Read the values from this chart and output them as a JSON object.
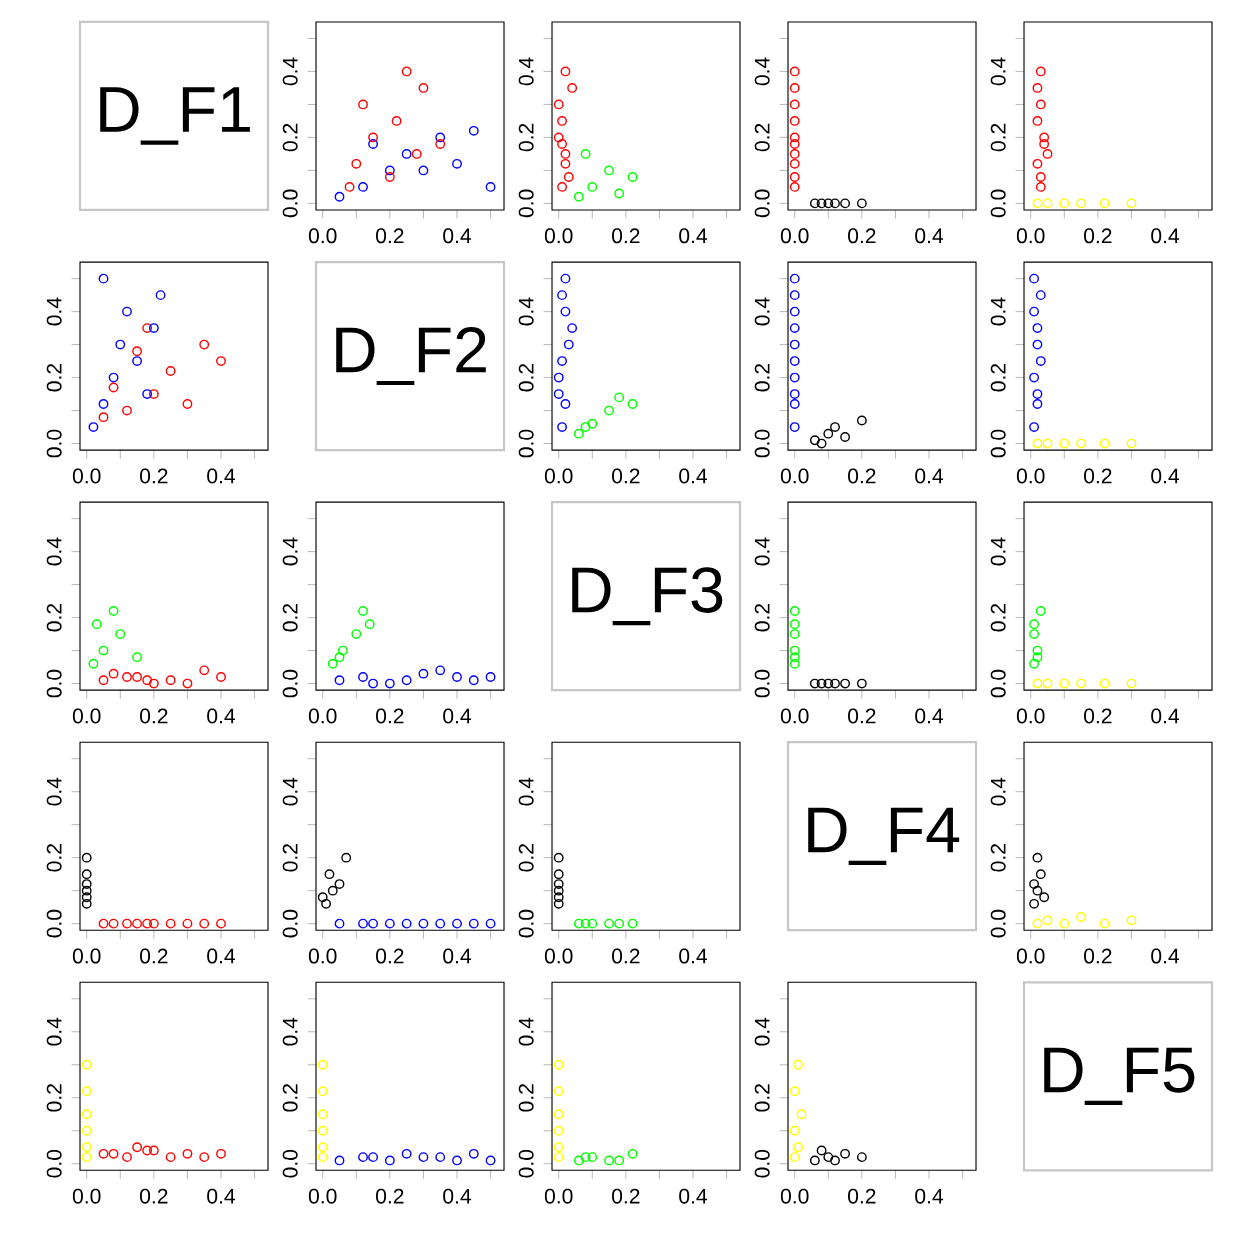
{
  "chart_data": [
    {
      "type": "other",
      "title": "D_F1"
    },
    {
      "type": "scatter",
      "marker": "circle",
      "xlim": [
        -0.02,
        0.54
      ],
      "ylim": [
        -0.02,
        0.55
      ],
      "xticks": [
        {
          "value": 0,
          "label": "0.0"
        },
        {
          "value": 0.1,
          "label": null
        },
        {
          "value": 0.2,
          "label": "0.2"
        },
        {
          "value": 0.3,
          "label": null
        },
        {
          "value": 0.4,
          "label": "0.4"
        },
        {
          "value": 0.5,
          "label": null
        }
      ],
      "yticks": [
        {
          "value": 0,
          "label": "0.0"
        },
        {
          "value": 0.1,
          "label": null
        },
        {
          "value": 0.2,
          "label": "0.2"
        },
        {
          "value": 0.3,
          "label": null
        },
        {
          "value": 0.4,
          "label": "0.4"
        },
        {
          "value": 0.5,
          "label": null
        }
      ],
      "series": [
        {
          "color": "#0000ff",
          "x": [
            0.05,
            0.12,
            0.2,
            0.3,
            0.25,
            0.4,
            0.35,
            0.45,
            0.15,
            0.5
          ],
          "values": [
            0.02,
            0.05,
            0.1,
            0.1,
            0.15,
            0.12,
            0.2,
            0.22,
            0.18,
            0.05
          ]
        },
        {
          "color": "#ff0000",
          "x": [
            0.08,
            0.1,
            0.15,
            0.2,
            0.22,
            0.28,
            0.12,
            0.3,
            0.35,
            0.25
          ],
          "values": [
            0.05,
            0.12,
            0.2,
            0.08,
            0.25,
            0.15,
            0.3,
            0.35,
            0.18,
            0.4
          ]
        }
      ]
    },
    {
      "type": "scatter",
      "marker": "circle",
      "xlim": [
        -0.02,
        0.54
      ],
      "ylim": [
        -0.02,
        0.55
      ],
      "xticks": [
        {
          "value": 0,
          "label": "0.0"
        },
        {
          "value": 0.1,
          "label": null
        },
        {
          "value": 0.2,
          "label": "0.2"
        },
        {
          "value": 0.3,
          "label": null
        },
        {
          "value": 0.4,
          "label": "0.4"
        },
        {
          "value": 0.5,
          "label": null
        }
      ],
      "yticks": [
        {
          "value": 0,
          "label": "0.0"
        },
        {
          "value": 0.1,
          "label": null
        },
        {
          "value": 0.2,
          "label": "0.2"
        },
        {
          "value": 0.3,
          "label": null
        },
        {
          "value": 0.4,
          "label": "0.4"
        },
        {
          "value": 0.5,
          "label": null
        }
      ],
      "series": [
        {
          "color": "#ff0000",
          "x": [
            0.01,
            0.02,
            0.0,
            0.03,
            0.01,
            0.02,
            0.0,
            0.04,
            0.01,
            0.02
          ],
          "values": [
            0.05,
            0.12,
            0.2,
            0.08,
            0.25,
            0.15,
            0.3,
            0.35,
            0.18,
            0.4
          ]
        },
        {
          "color": "#00ff00",
          "x": [
            0.06,
            0.1,
            0.15,
            0.22,
            0.08,
            0.18
          ],
          "values": [
            0.02,
            0.05,
            0.1,
            0.08,
            0.15,
            0.03
          ]
        }
      ]
    },
    {
      "type": "scatter",
      "marker": "circle",
      "xlim": [
        -0.02,
        0.54
      ],
      "ylim": [
        -0.02,
        0.55
      ],
      "xticks": [
        {
          "value": 0,
          "label": "0.0"
        },
        {
          "value": 0.1,
          "label": null
        },
        {
          "value": 0.2,
          "label": "0.2"
        },
        {
          "value": 0.3,
          "label": null
        },
        {
          "value": 0.4,
          "label": "0.4"
        },
        {
          "value": 0.5,
          "label": null
        }
      ],
      "yticks": [
        {
          "value": 0,
          "label": "0.0"
        },
        {
          "value": 0.1,
          "label": null
        },
        {
          "value": 0.2,
          "label": "0.2"
        },
        {
          "value": 0.3,
          "label": null
        },
        {
          "value": 0.4,
          "label": "0.4"
        },
        {
          "value": 0.5,
          "label": null
        }
      ],
      "series": [
        {
          "color": "#ff0000",
          "x": [
            0,
            0,
            0,
            0,
            0,
            0,
            0,
            0,
            0,
            0
          ],
          "values": [
            0.05,
            0.12,
            0.2,
            0.08,
            0.25,
            0.15,
            0.3,
            0.35,
            0.18,
            0.4
          ]
        },
        {
          "color": "#000000",
          "x": [
            0.06,
            0.1,
            0.12,
            0.15,
            0.2,
            0.08
          ],
          "values": [
            0,
            0,
            0,
            0,
            0,
            0
          ]
        }
      ]
    },
    {
      "type": "scatter",
      "marker": "circle",
      "xlim": [
        -0.02,
        0.54
      ],
      "ylim": [
        -0.02,
        0.55
      ],
      "xticks": [
        {
          "value": 0,
          "label": "0.0"
        },
        {
          "value": 0.1,
          "label": null
        },
        {
          "value": 0.2,
          "label": "0.2"
        },
        {
          "value": 0.3,
          "label": null
        },
        {
          "value": 0.4,
          "label": "0.4"
        },
        {
          "value": 0.5,
          "label": null
        }
      ],
      "yticks": [
        {
          "value": 0,
          "label": "0.0"
        },
        {
          "value": 0.1,
          "label": null
        },
        {
          "value": 0.2,
          "label": "0.2"
        },
        {
          "value": 0.3,
          "label": null
        },
        {
          "value": 0.4,
          "label": "0.4"
        },
        {
          "value": 0.5,
          "label": null
        }
      ],
      "series": [
        {
          "color": "#ff0000",
          "x": [
            0.03,
            0.02,
            0.04,
            0.03,
            0.02,
            0.05,
            0.03,
            0.02,
            0.04,
            0.03
          ],
          "values": [
            0.05,
            0.12,
            0.2,
            0.08,
            0.25,
            0.15,
            0.3,
            0.35,
            0.18,
            0.4
          ]
        },
        {
          "color": "#ffff00",
          "x": [
            0.02,
            0.05,
            0.1,
            0.15,
            0.22,
            0.3
          ],
          "values": [
            0,
            0,
            0,
            0,
            0,
            0
          ]
        }
      ]
    },
    {
      "type": "scatter",
      "marker": "circle",
      "xlim": [
        -0.02,
        0.54
      ],
      "ylim": [
        -0.02,
        0.55
      ],
      "xticks": [
        {
          "value": 0,
          "label": "0.0"
        },
        {
          "value": 0.1,
          "label": null
        },
        {
          "value": 0.2,
          "label": "0.2"
        },
        {
          "value": 0.3,
          "label": null
        },
        {
          "value": 0.4,
          "label": "0.4"
        },
        {
          "value": 0.5,
          "label": null
        }
      ],
      "yticks": [
        {
          "value": 0,
          "label": "0.0"
        },
        {
          "value": 0.1,
          "label": null
        },
        {
          "value": 0.2,
          "label": "0.2"
        },
        {
          "value": 0.3,
          "label": null
        },
        {
          "value": 0.4,
          "label": "0.4"
        },
        {
          "value": 0.5,
          "label": null
        }
      ],
      "series": [
        {
          "color": "#ff0000",
          "x": [
            0.05,
            0.12,
            0.2,
            0.08,
            0.25,
            0.15,
            0.3,
            0.35,
            0.18,
            0.4
          ],
          "values": [
            0.08,
            0.1,
            0.15,
            0.17,
            0.22,
            0.28,
            0.12,
            0.3,
            0.35,
            0.25
          ]
        },
        {
          "color": "#0000ff",
          "x": [
            0.02,
            0.05,
            0.08,
            0.1,
            0.15,
            0.12,
            0.2,
            0.22,
            0.18,
            0.05
          ],
          "values": [
            0.05,
            0.12,
            0.2,
            0.3,
            0.25,
            0.4,
            0.35,
            0.45,
            0.15,
            0.5
          ]
        }
      ]
    },
    {
      "type": "other",
      "title": "D_F2"
    },
    {
      "type": "scatter",
      "marker": "circle",
      "xlim": [
        -0.02,
        0.54
      ],
      "ylim": [
        -0.02,
        0.55
      ],
      "xticks": [
        {
          "value": 0,
          "label": "0.0"
        },
        {
          "value": 0.1,
          "label": null
        },
        {
          "value": 0.2,
          "label": "0.2"
        },
        {
          "value": 0.3,
          "label": null
        },
        {
          "value": 0.4,
          "label": "0.4"
        },
        {
          "value": 0.5,
          "label": null
        }
      ],
      "yticks": [
        {
          "value": 0,
          "label": "0.0"
        },
        {
          "value": 0.1,
          "label": null
        },
        {
          "value": 0.2,
          "label": "0.2"
        },
        {
          "value": 0.3,
          "label": null
        },
        {
          "value": 0.4,
          "label": "0.4"
        },
        {
          "value": 0.5,
          "label": null
        }
      ],
      "series": [
        {
          "color": "#0000ff",
          "x": [
            0.01,
            0.02,
            0.0,
            0.03,
            0.01,
            0.02,
            0.04,
            0.01,
            0.0,
            0.02
          ],
          "values": [
            0.05,
            0.12,
            0.2,
            0.3,
            0.25,
            0.4,
            0.35,
            0.45,
            0.15,
            0.5
          ]
        },
        {
          "color": "#00ff00",
          "x": [
            0.06,
            0.1,
            0.15,
            0.22,
            0.08,
            0.18
          ],
          "values": [
            0.03,
            0.06,
            0.1,
            0.12,
            0.05,
            0.14
          ]
        }
      ]
    },
    {
      "type": "scatter",
      "marker": "circle",
      "xlim": [
        -0.02,
        0.54
      ],
      "ylim": [
        -0.02,
        0.55
      ],
      "xticks": [
        {
          "value": 0,
          "label": "0.0"
        },
        {
          "value": 0.1,
          "label": null
        },
        {
          "value": 0.2,
          "label": "0.2"
        },
        {
          "value": 0.3,
          "label": null
        },
        {
          "value": 0.4,
          "label": "0.4"
        },
        {
          "value": 0.5,
          "label": null
        }
      ],
      "yticks": [
        {
          "value": 0,
          "label": "0.0"
        },
        {
          "value": 0.1,
          "label": null
        },
        {
          "value": 0.2,
          "label": "0.2"
        },
        {
          "value": 0.3,
          "label": null
        },
        {
          "value": 0.4,
          "label": "0.4"
        },
        {
          "value": 0.5,
          "label": null
        }
      ],
      "series": [
        {
          "color": "#0000ff",
          "x": [
            0,
            0,
            0,
            0,
            0,
            0,
            0,
            0,
            0,
            0
          ],
          "values": [
            0.05,
            0.12,
            0.2,
            0.3,
            0.25,
            0.4,
            0.35,
            0.45,
            0.15,
            0.5
          ]
        },
        {
          "color": "#000000",
          "x": [
            0.06,
            0.1,
            0.12,
            0.15,
            0.2,
            0.08
          ],
          "values": [
            0.01,
            0.03,
            0.05,
            0.02,
            0.07,
            0.0
          ]
        }
      ]
    },
    {
      "type": "scatter",
      "marker": "circle",
      "xlim": [
        -0.02,
        0.54
      ],
      "ylim": [
        -0.02,
        0.55
      ],
      "xticks": [
        {
          "value": 0,
          "label": "0.0"
        },
        {
          "value": 0.1,
          "label": null
        },
        {
          "value": 0.2,
          "label": "0.2"
        },
        {
          "value": 0.3,
          "label": null
        },
        {
          "value": 0.4,
          "label": "0.4"
        },
        {
          "value": 0.5,
          "label": null
        }
      ],
      "yticks": [
        {
          "value": 0,
          "label": "0.0"
        },
        {
          "value": 0.1,
          "label": null
        },
        {
          "value": 0.2,
          "label": "0.2"
        },
        {
          "value": 0.3,
          "label": null
        },
        {
          "value": 0.4,
          "label": "0.4"
        },
        {
          "value": 0.5,
          "label": null
        }
      ],
      "series": [
        {
          "color": "#0000ff",
          "x": [
            0.01,
            0.02,
            0.01,
            0.02,
            0.03,
            0.01,
            0.02,
            0.03,
            0.02,
            0.01
          ],
          "values": [
            0.05,
            0.12,
            0.2,
            0.3,
            0.25,
            0.4,
            0.35,
            0.45,
            0.15,
            0.5
          ]
        },
        {
          "color": "#ffff00",
          "x": [
            0.02,
            0.05,
            0.1,
            0.15,
            0.22,
            0.3
          ],
          "values": [
            0,
            0,
            0,
            0,
            0,
            0
          ]
        }
      ]
    },
    {
      "type": "scatter",
      "marker": "circle",
      "xlim": [
        -0.02,
        0.54
      ],
      "ylim": [
        -0.02,
        0.55
      ],
      "xticks": [
        {
          "value": 0,
          "label": "0.0"
        },
        {
          "value": 0.1,
          "label": null
        },
        {
          "value": 0.2,
          "label": "0.2"
        },
        {
          "value": 0.3,
          "label": null
        },
        {
          "value": 0.4,
          "label": "0.4"
        },
        {
          "value": 0.5,
          "label": null
        }
      ],
      "yticks": [
        {
          "value": 0,
          "label": "0.0"
        },
        {
          "value": 0.1,
          "label": null
        },
        {
          "value": 0.2,
          "label": "0.2"
        },
        {
          "value": 0.3,
          "label": null
        },
        {
          "value": 0.4,
          "label": "0.4"
        },
        {
          "value": 0.5,
          "label": null
        }
      ],
      "series": [
        {
          "color": "#00ff00",
          "x": [
            0.02,
            0.05,
            0.1,
            0.08,
            0.15,
            0.03
          ],
          "values": [
            0.06,
            0.1,
            0.15,
            0.22,
            0.08,
            0.18
          ]
        },
        {
          "color": "#ff0000",
          "x": [
            0.05,
            0.12,
            0.2,
            0.08,
            0.25,
            0.15,
            0.3,
            0.35,
            0.18,
            0.4
          ],
          "values": [
            0.01,
            0.02,
            0.0,
            0.03,
            0.01,
            0.02,
            0.0,
            0.04,
            0.01,
            0.02
          ]
        }
      ]
    },
    {
      "type": "scatter",
      "marker": "circle",
      "xlim": [
        -0.02,
        0.54
      ],
      "ylim": [
        -0.02,
        0.55
      ],
      "xticks": [
        {
          "value": 0,
          "label": "0.0"
        },
        {
          "value": 0.1,
          "label": null
        },
        {
          "value": 0.2,
          "label": "0.2"
        },
        {
          "value": 0.3,
          "label": null
        },
        {
          "value": 0.4,
          "label": "0.4"
        },
        {
          "value": 0.5,
          "label": null
        }
      ],
      "yticks": [
        {
          "value": 0,
          "label": "0.0"
        },
        {
          "value": 0.1,
          "label": null
        },
        {
          "value": 0.2,
          "label": "0.2"
        },
        {
          "value": 0.3,
          "label": null
        },
        {
          "value": 0.4,
          "label": "0.4"
        },
        {
          "value": 0.5,
          "label": null
        }
      ],
      "series": [
        {
          "color": "#00ff00",
          "x": [
            0.03,
            0.06,
            0.1,
            0.12,
            0.05,
            0.14
          ],
          "values": [
            0.06,
            0.1,
            0.15,
            0.22,
            0.08,
            0.18
          ]
        },
        {
          "color": "#0000ff",
          "x": [
            0.05,
            0.12,
            0.2,
            0.3,
            0.25,
            0.4,
            0.35,
            0.45,
            0.15,
            0.5
          ],
          "values": [
            0.01,
            0.02,
            0.0,
            0.03,
            0.01,
            0.02,
            0.04,
            0.01,
            0.0,
            0.02
          ]
        }
      ]
    },
    {
      "type": "other",
      "title": "D_F3"
    },
    {
      "type": "scatter",
      "marker": "circle",
      "xlim": [
        -0.02,
        0.54
      ],
      "ylim": [
        -0.02,
        0.55
      ],
      "xticks": [
        {
          "value": 0,
          "label": "0.0"
        },
        {
          "value": 0.1,
          "label": null
        },
        {
          "value": 0.2,
          "label": "0.2"
        },
        {
          "value": 0.3,
          "label": null
        },
        {
          "value": 0.4,
          "label": "0.4"
        },
        {
          "value": 0.5,
          "label": null
        }
      ],
      "yticks": [
        {
          "value": 0,
          "label": "0.0"
        },
        {
          "value": 0.1,
          "label": null
        },
        {
          "value": 0.2,
          "label": "0.2"
        },
        {
          "value": 0.3,
          "label": null
        },
        {
          "value": 0.4,
          "label": "0.4"
        },
        {
          "value": 0.5,
          "label": null
        }
      ],
      "series": [
        {
          "color": "#00ff00",
          "x": [
            0,
            0,
            0,
            0,
            0,
            0
          ],
          "values": [
            0.06,
            0.1,
            0.15,
            0.22,
            0.08,
            0.18
          ]
        },
        {
          "color": "#000000",
          "x": [
            0.06,
            0.1,
            0.12,
            0.15,
            0.2,
            0.08
          ],
          "values": [
            0,
            0,
            0,
            0,
            0,
            0
          ]
        }
      ]
    },
    {
      "type": "scatter",
      "marker": "circle",
      "xlim": [
        -0.02,
        0.54
      ],
      "ylim": [
        -0.02,
        0.55
      ],
      "xticks": [
        {
          "value": 0,
          "label": "0.0"
        },
        {
          "value": 0.1,
          "label": null
        },
        {
          "value": 0.2,
          "label": "0.2"
        },
        {
          "value": 0.3,
          "label": null
        },
        {
          "value": 0.4,
          "label": "0.4"
        },
        {
          "value": 0.5,
          "label": null
        }
      ],
      "yticks": [
        {
          "value": 0,
          "label": "0.0"
        },
        {
          "value": 0.1,
          "label": null
        },
        {
          "value": 0.2,
          "label": "0.2"
        },
        {
          "value": 0.3,
          "label": null
        },
        {
          "value": 0.4,
          "label": "0.4"
        },
        {
          "value": 0.5,
          "label": null
        }
      ],
      "series": [
        {
          "color": "#00ff00",
          "x": [
            0.01,
            0.02,
            0.01,
            0.03,
            0.02,
            0.01
          ],
          "values": [
            0.06,
            0.1,
            0.15,
            0.22,
            0.08,
            0.18
          ]
        },
        {
          "color": "#ffff00",
          "x": [
            0.02,
            0.05,
            0.1,
            0.15,
            0.22,
            0.3
          ],
          "values": [
            0,
            0,
            0,
            0,
            0,
            0
          ]
        }
      ]
    },
    {
      "type": "scatter",
      "marker": "circle",
      "xlim": [
        -0.02,
        0.54
      ],
      "ylim": [
        -0.02,
        0.55
      ],
      "xticks": [
        {
          "value": 0,
          "label": "0.0"
        },
        {
          "value": 0.1,
          "label": null
        },
        {
          "value": 0.2,
          "label": "0.2"
        },
        {
          "value": 0.3,
          "label": null
        },
        {
          "value": 0.4,
          "label": "0.4"
        },
        {
          "value": 0.5,
          "label": null
        }
      ],
      "yticks": [
        {
          "value": 0,
          "label": "0.0"
        },
        {
          "value": 0.1,
          "label": null
        },
        {
          "value": 0.2,
          "label": "0.2"
        },
        {
          "value": 0.3,
          "label": null
        },
        {
          "value": 0.4,
          "label": "0.4"
        },
        {
          "value": 0.5,
          "label": null
        }
      ],
      "series": [
        {
          "color": "#000000",
          "x": [
            0,
            0,
            0,
            0,
            0,
            0
          ],
          "values": [
            0.06,
            0.1,
            0.12,
            0.15,
            0.2,
            0.08
          ]
        },
        {
          "color": "#ff0000",
          "x": [
            0.05,
            0.12,
            0.2,
            0.08,
            0.25,
            0.15,
            0.3,
            0.35,
            0.18,
            0.4
          ],
          "values": [
            0,
            0,
            0,
            0,
            0,
            0,
            0,
            0,
            0,
            0
          ]
        }
      ]
    },
    {
      "type": "scatter",
      "marker": "circle",
      "xlim": [
        -0.02,
        0.54
      ],
      "ylim": [
        -0.02,
        0.55
      ],
      "xticks": [
        {
          "value": 0,
          "label": "0.0"
        },
        {
          "value": 0.1,
          "label": null
        },
        {
          "value": 0.2,
          "label": "0.2"
        },
        {
          "value": 0.3,
          "label": null
        },
        {
          "value": 0.4,
          "label": "0.4"
        },
        {
          "value": 0.5,
          "label": null
        }
      ],
      "yticks": [
        {
          "value": 0,
          "label": "0.0"
        },
        {
          "value": 0.1,
          "label": null
        },
        {
          "value": 0.2,
          "label": "0.2"
        },
        {
          "value": 0.3,
          "label": null
        },
        {
          "value": 0.4,
          "label": "0.4"
        },
        {
          "value": 0.5,
          "label": null
        }
      ],
      "series": [
        {
          "color": "#000000",
          "x": [
            0.01,
            0.03,
            0.05,
            0.02,
            0.07,
            0.0
          ],
          "values": [
            0.06,
            0.1,
            0.12,
            0.15,
            0.2,
            0.08
          ]
        },
        {
          "color": "#0000ff",
          "x": [
            0.05,
            0.12,
            0.2,
            0.3,
            0.25,
            0.4,
            0.35,
            0.45,
            0.15,
            0.5
          ],
          "values": [
            0,
            0,
            0,
            0,
            0,
            0,
            0,
            0,
            0,
            0
          ]
        }
      ]
    },
    {
      "type": "scatter",
      "marker": "circle",
      "xlim": [
        -0.02,
        0.54
      ],
      "ylim": [
        -0.02,
        0.55
      ],
      "xticks": [
        {
          "value": 0,
          "label": "0.0"
        },
        {
          "value": 0.1,
          "label": null
        },
        {
          "value": 0.2,
          "label": "0.2"
        },
        {
          "value": 0.3,
          "label": null
        },
        {
          "value": 0.4,
          "label": "0.4"
        },
        {
          "value": 0.5,
          "label": null
        }
      ],
      "yticks": [
        {
          "value": 0,
          "label": "0.0"
        },
        {
          "value": 0.1,
          "label": null
        },
        {
          "value": 0.2,
          "label": "0.2"
        },
        {
          "value": 0.3,
          "label": null
        },
        {
          "value": 0.4,
          "label": "0.4"
        },
        {
          "value": 0.5,
          "label": null
        }
      ],
      "series": [
        {
          "color": "#000000",
          "x": [
            0,
            0,
            0,
            0,
            0,
            0
          ],
          "values": [
            0.06,
            0.1,
            0.12,
            0.15,
            0.2,
            0.08
          ]
        },
        {
          "color": "#00ff00",
          "x": [
            0.06,
            0.1,
            0.15,
            0.22,
            0.08,
            0.18
          ],
          "values": [
            0,
            0,
            0,
            0,
            0,
            0
          ]
        }
      ]
    },
    {
      "type": "other",
      "title": "D_F4"
    },
    {
      "type": "scatter",
      "marker": "circle",
      "xlim": [
        -0.02,
        0.54
      ],
      "ylim": [
        -0.02,
        0.55
      ],
      "xticks": [
        {
          "value": 0,
          "label": "0.0"
        },
        {
          "value": 0.1,
          "label": null
        },
        {
          "value": 0.2,
          "label": "0.2"
        },
        {
          "value": 0.3,
          "label": null
        },
        {
          "value": 0.4,
          "label": "0.4"
        },
        {
          "value": 0.5,
          "label": null
        }
      ],
      "yticks": [
        {
          "value": 0,
          "label": "0.0"
        },
        {
          "value": 0.1,
          "label": null
        },
        {
          "value": 0.2,
          "label": "0.2"
        },
        {
          "value": 0.3,
          "label": null
        },
        {
          "value": 0.4,
          "label": "0.4"
        },
        {
          "value": 0.5,
          "label": null
        }
      ],
      "series": [
        {
          "color": "#000000",
          "x": [
            0.01,
            0.02,
            0.01,
            0.03,
            0.02,
            0.04
          ],
          "values": [
            0.06,
            0.1,
            0.12,
            0.15,
            0.2,
            0.08
          ]
        },
        {
          "color": "#ffff00",
          "x": [
            0.02,
            0.05,
            0.1,
            0.15,
            0.22,
            0.3
          ],
          "values": [
            0,
            0.01,
            0,
            0.02,
            0,
            0.01
          ]
        }
      ]
    },
    {
      "type": "scatter",
      "marker": "circle",
      "xlim": [
        -0.02,
        0.54
      ],
      "ylim": [
        -0.02,
        0.55
      ],
      "xticks": [
        {
          "value": 0,
          "label": "0.0"
        },
        {
          "value": 0.1,
          "label": null
        },
        {
          "value": 0.2,
          "label": "0.2"
        },
        {
          "value": 0.3,
          "label": null
        },
        {
          "value": 0.4,
          "label": "0.4"
        },
        {
          "value": 0.5,
          "label": null
        }
      ],
      "yticks": [
        {
          "value": 0,
          "label": "0.0"
        },
        {
          "value": 0.1,
          "label": null
        },
        {
          "value": 0.2,
          "label": "0.2"
        },
        {
          "value": 0.3,
          "label": null
        },
        {
          "value": 0.4,
          "label": "0.4"
        },
        {
          "value": 0.5,
          "label": null
        }
      ],
      "series": [
        {
          "color": "#ffff00",
          "x": [
            0,
            0,
            0,
            0,
            0,
            0
          ],
          "values": [
            0.02,
            0.05,
            0.1,
            0.15,
            0.22,
            0.3
          ]
        },
        {
          "color": "#ff0000",
          "x": [
            0.05,
            0.12,
            0.2,
            0.08,
            0.25,
            0.15,
            0.3,
            0.35,
            0.18,
            0.4
          ],
          "values": [
            0.03,
            0.02,
            0.04,
            0.03,
            0.02,
            0.05,
            0.03,
            0.02,
            0.04,
            0.03
          ]
        }
      ]
    },
    {
      "type": "scatter",
      "marker": "circle",
      "xlim": [
        -0.02,
        0.54
      ],
      "ylim": [
        -0.02,
        0.55
      ],
      "xticks": [
        {
          "value": 0,
          "label": "0.0"
        },
        {
          "value": 0.1,
          "label": null
        },
        {
          "value": 0.2,
          "label": "0.2"
        },
        {
          "value": 0.3,
          "label": null
        },
        {
          "value": 0.4,
          "label": "0.4"
        },
        {
          "value": 0.5,
          "label": null
        }
      ],
      "yticks": [
        {
          "value": 0,
          "label": "0.0"
        },
        {
          "value": 0.1,
          "label": null
        },
        {
          "value": 0.2,
          "label": "0.2"
        },
        {
          "value": 0.3,
          "label": null
        },
        {
          "value": 0.4,
          "label": "0.4"
        },
        {
          "value": 0.5,
          "label": null
        }
      ],
      "series": [
        {
          "color": "#ffff00",
          "x": [
            0,
            0,
            0,
            0,
            0,
            0
          ],
          "values": [
            0.02,
            0.05,
            0.1,
            0.15,
            0.22,
            0.3
          ]
        },
        {
          "color": "#0000ff",
          "x": [
            0.05,
            0.12,
            0.2,
            0.3,
            0.25,
            0.4,
            0.35,
            0.45,
            0.15,
            0.5
          ],
          "values": [
            0.01,
            0.02,
            0.01,
            0.02,
            0.03,
            0.01,
            0.02,
            0.03,
            0.02,
            0.01
          ]
        }
      ]
    },
    {
      "type": "scatter",
      "marker": "circle",
      "xlim": [
        -0.02,
        0.54
      ],
      "ylim": [
        -0.02,
        0.55
      ],
      "xticks": [
        {
          "value": 0,
          "label": "0.0"
        },
        {
          "value": 0.1,
          "label": null
        },
        {
          "value": 0.2,
          "label": "0.2"
        },
        {
          "value": 0.3,
          "label": null
        },
        {
          "value": 0.4,
          "label": "0.4"
        },
        {
          "value": 0.5,
          "label": null
        }
      ],
      "yticks": [
        {
          "value": 0,
          "label": "0.0"
        },
        {
          "value": 0.1,
          "label": null
        },
        {
          "value": 0.2,
          "label": "0.2"
        },
        {
          "value": 0.3,
          "label": null
        },
        {
          "value": 0.4,
          "label": "0.4"
        },
        {
          "value": 0.5,
          "label": null
        }
      ],
      "series": [
        {
          "color": "#ffff00",
          "x": [
            0,
            0,
            0,
            0,
            0,
            0
          ],
          "values": [
            0.02,
            0.05,
            0.1,
            0.15,
            0.22,
            0.3
          ]
        },
        {
          "color": "#00ff00",
          "x": [
            0.06,
            0.1,
            0.15,
            0.22,
            0.08,
            0.18
          ],
          "values": [
            0.01,
            0.02,
            0.01,
            0.03,
            0.02,
            0.01
          ]
        }
      ]
    },
    {
      "type": "scatter",
      "marker": "circle",
      "xlim": [
        -0.02,
        0.54
      ],
      "ylim": [
        -0.02,
        0.55
      ],
      "xticks": [
        {
          "value": 0,
          "label": "0.0"
        },
        {
          "value": 0.1,
          "label": null
        },
        {
          "value": 0.2,
          "label": "0.2"
        },
        {
          "value": 0.3,
          "label": null
        },
        {
          "value": 0.4,
          "label": "0.4"
        },
        {
          "value": 0.5,
          "label": null
        }
      ],
      "yticks": [
        {
          "value": 0,
          "label": "0.0"
        },
        {
          "value": 0.1,
          "label": null
        },
        {
          "value": 0.2,
          "label": "0.2"
        },
        {
          "value": 0.3,
          "label": null
        },
        {
          "value": 0.4,
          "label": "0.4"
        },
        {
          "value": 0.5,
          "label": null
        }
      ],
      "series": [
        {
          "color": "#ffff00",
          "x": [
            0,
            0.01,
            0,
            0.02,
            0,
            0.01
          ],
          "values": [
            0.02,
            0.05,
            0.1,
            0.15,
            0.22,
            0.3
          ]
        },
        {
          "color": "#000000",
          "x": [
            0.06,
            0.1,
            0.12,
            0.15,
            0.2,
            0.08
          ],
          "values": [
            0.01,
            0.02,
            0.01,
            0.03,
            0.02,
            0.04
          ]
        }
      ]
    },
    {
      "type": "other",
      "title": "D_F5"
    }
  ]
}
